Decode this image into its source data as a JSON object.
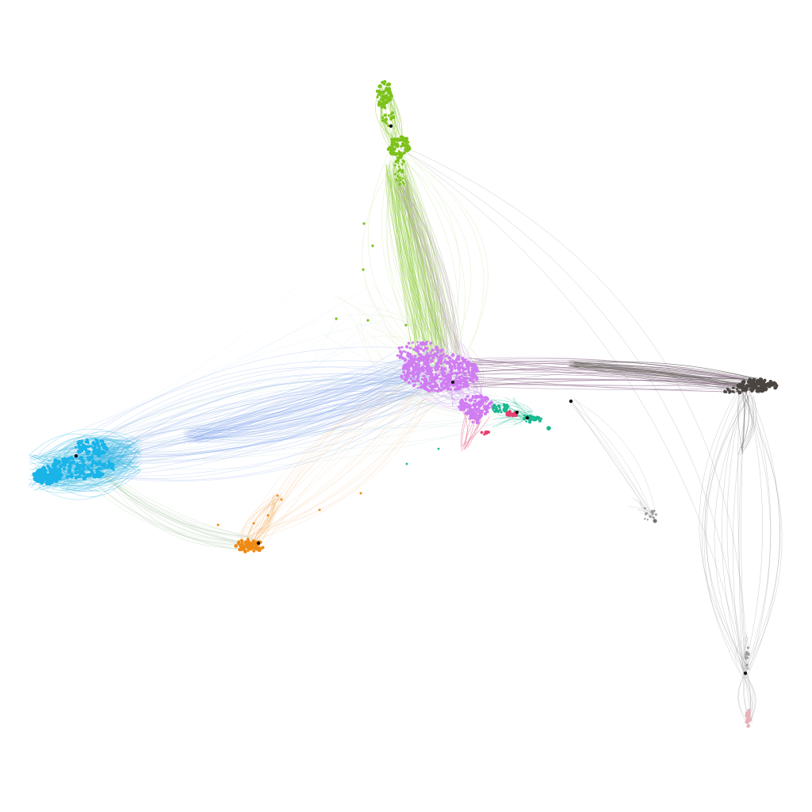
{
  "graph": {
    "type": "force-directed-network",
    "background": "#ffffff",
    "clusters": [
      {
        "id": "green",
        "color": "#7cc21a",
        "edge_color": "#8fcb3a"
      },
      {
        "id": "violet",
        "color": "#d07cf2",
        "edge_color": "#c98be8"
      },
      {
        "id": "cyan",
        "color": "#1ab4e8",
        "edge_color": "#3cbbe6"
      },
      {
        "id": "orange",
        "color": "#ef8a14",
        "edge_color": "#f2a552"
      },
      {
        "id": "teal",
        "color": "#16b88e",
        "edge_color": "#3cc3a0"
      },
      {
        "id": "crimson",
        "color": "#e6406e",
        "edge_color": "#e86b8d"
      },
      {
        "id": "charcoal",
        "color": "#4a4540",
        "edge_color": "#6a6560"
      },
      {
        "id": "grey",
        "color": "#9a9a9a",
        "edge_color": "#b0b0b0"
      },
      {
        "id": "pink",
        "color": "#e8b0b8",
        "edge_color": "#c8a0a8"
      }
    ],
    "bridge_colors": {
      "cyan_violet": "#8aa8ee",
      "green_violet": "#b8b0a8",
      "violet_charcoal": "#8e6a8c"
    }
  }
}
